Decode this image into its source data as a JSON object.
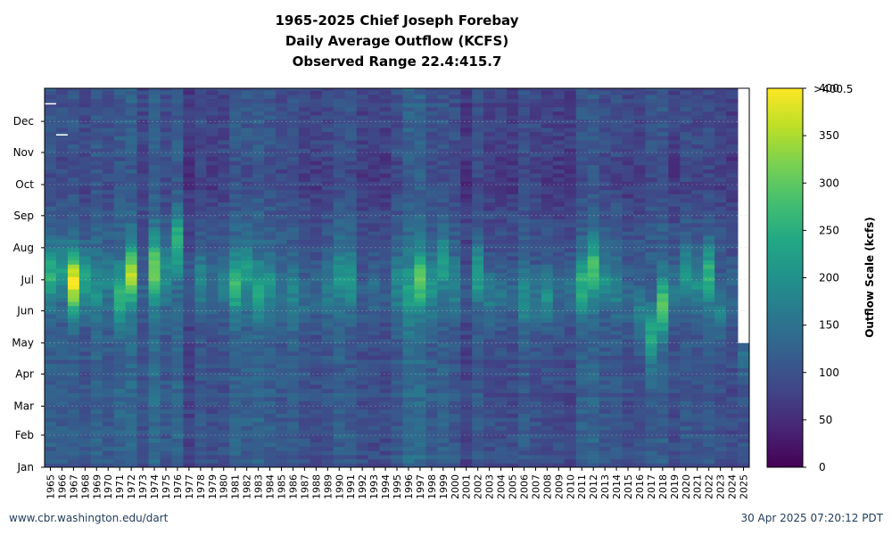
{
  "title": {
    "line1": "1965-2025 Chief Joseph Forebay",
    "line2": "Daily Average Outflow (KCFS)",
    "line3": "Observed Range 22.4:415.7"
  },
  "footer": {
    "left": "www.cbr.washington.edu/dart",
    "right": "30 Apr 2025 07:20:12 PDT"
  },
  "chart_data": {
    "type": "heatmap",
    "title": "1965-2025 Chief Joseph Forebay Daily Average Outflow (KCFS) Observed Range 22.4:415.7",
    "x": {
      "label": "",
      "years": [
        1965,
        1966,
        1967,
        1968,
        1969,
        1970,
        1971,
        1972,
        1973,
        1974,
        1975,
        1976,
        1977,
        1978,
        1979,
        1980,
        1981,
        1982,
        1983,
        1984,
        1985,
        1986,
        1987,
        1988,
        1989,
        1990,
        1991,
        1992,
        1993,
        1994,
        1995,
        1996,
        1997,
        1998,
        1999,
        2000,
        2001,
        2002,
        2003,
        2004,
        2005,
        2006,
        2007,
        2008,
        2009,
        2010,
        2011,
        2012,
        2013,
        2014,
        2015,
        2016,
        2017,
        2018,
        2019,
        2020,
        2021,
        2022,
        2023,
        2024,
        2025
      ],
      "tick_labels": [
        "1965",
        "1966",
        "1967",
        "1968",
        "1969",
        "1970",
        "1971",
        "1972",
        "1973",
        "1974",
        "1975",
        "1976",
        "1977",
        "1978",
        "1979",
        "1980",
        "1981",
        "1982",
        "1983",
        "1984",
        "1985",
        "1986",
        "1987",
        "1988",
        "1989",
        "1990",
        "1991",
        "1992",
        "1993",
        "1994",
        "1995",
        "1996",
        "1997",
        "1998",
        "1999",
        "2000",
        "2001",
        "2002",
        "2003",
        "2004",
        "2005",
        "2006",
        "2007",
        "2008",
        "2009",
        "2010",
        "2011",
        "2012",
        "2013",
        "2014",
        "2015",
        "2016",
        "2017",
        "2018",
        "2019",
        "2020",
        "2021",
        "2022",
        "2023",
        "2024",
        "2025"
      ]
    },
    "y": {
      "label": "",
      "months": [
        "Jan",
        "Feb",
        "Mar",
        "Apr",
        "May",
        "Jun",
        "Jul",
        "Aug",
        "Sep",
        "Oct",
        "Nov",
        "Dec"
      ],
      "range_days": [
        1,
        366
      ]
    },
    "colorbar": {
      "label": "Outflow Scale (kcfs)",
      "colormap": "viridis",
      "range": [
        0,
        400
      ],
      "ticks": [
        0,
        50,
        100,
        150,
        200,
        250,
        300,
        350,
        400
      ],
      "tick_labels": [
        "0",
        "50",
        "100",
        "150",
        "200",
        "250",
        "300",
        "350",
        "400"
      ],
      "over_label": ">400.5"
    },
    "data_end": {
      "year": 2025,
      "last_day_of_year": 120
    },
    "missing_marks": [
      {
        "year": 1965,
        "day_of_year": 352
      },
      {
        "year": 1966,
        "day_of_year": 322
      }
    ],
    "daily_model": {
      "note": "Typical daily outflow by year (kcfs): base winter value, spring/summer peak value and peak day-of-year",
      "years": [
        {
          "year": 1965,
          "winter": 120,
          "peak": 250,
          "peak_day": 185
        },
        {
          "year": 1966,
          "winter": 115,
          "peak": 215,
          "peak_day": 190
        },
        {
          "year": 1967,
          "winter": 120,
          "peak": 390,
          "peak_day": 178
        },
        {
          "year": 1968,
          "winter": 105,
          "peak": 230,
          "peak_day": 180
        },
        {
          "year": 1969,
          "winter": 125,
          "peak": 200,
          "peak_day": 170
        },
        {
          "year": 1970,
          "winter": 115,
          "peak": 175,
          "peak_day": 180
        },
        {
          "year": 1971,
          "winter": 130,
          "peak": 260,
          "peak_day": 165
        },
        {
          "year": 1972,
          "winter": 135,
          "peak": 350,
          "peak_day": 185
        },
        {
          "year": 1973,
          "winter": 100,
          "peak": 130,
          "peak_day": 170
        },
        {
          "year": 1974,
          "winter": 140,
          "peak": 320,
          "peak_day": 190
        },
        {
          "year": 1975,
          "winter": 110,
          "peak": 200,
          "peak_day": 185
        },
        {
          "year": 1976,
          "winter": 130,
          "peak": 260,
          "peak_day": 215
        },
        {
          "year": 1977,
          "winter": 80,
          "peak": 110,
          "peak_day": 180
        },
        {
          "year": 1978,
          "winter": 105,
          "peak": 180,
          "peak_day": 180
        },
        {
          "year": 1979,
          "winter": 95,
          "peak": 150,
          "peak_day": 175
        },
        {
          "year": 1980,
          "winter": 100,
          "peak": 170,
          "peak_day": 175
        },
        {
          "year": 1981,
          "winter": 125,
          "peak": 270,
          "peak_day": 175
        },
        {
          "year": 1982,
          "winter": 120,
          "peak": 220,
          "peak_day": 185
        },
        {
          "year": 1983,
          "winter": 130,
          "peak": 230,
          "peak_day": 170
        },
        {
          "year": 1984,
          "winter": 120,
          "peak": 200,
          "peak_day": 175
        },
        {
          "year": 1985,
          "winter": 110,
          "peak": 160,
          "peak_day": 170
        },
        {
          "year": 1986,
          "winter": 115,
          "peak": 180,
          "peak_day": 165
        },
        {
          "year": 1987,
          "winter": 100,
          "peak": 140,
          "peak_day": 160
        },
        {
          "year": 1988,
          "winter": 95,
          "peak": 130,
          "peak_day": 170
        },
        {
          "year": 1989,
          "winter": 105,
          "peak": 160,
          "peak_day": 170
        },
        {
          "year": 1990,
          "winter": 120,
          "peak": 200,
          "peak_day": 185
        },
        {
          "year": 1991,
          "winter": 115,
          "peak": 220,
          "peak_day": 180
        },
        {
          "year": 1992,
          "winter": 95,
          "peak": 120,
          "peak_day": 160
        },
        {
          "year": 1993,
          "winter": 90,
          "peak": 140,
          "peak_day": 170
        },
        {
          "year": 1994,
          "winter": 90,
          "peak": 120,
          "peak_day": 170
        },
        {
          "year": 1995,
          "winter": 110,
          "peak": 180,
          "peak_day": 175
        },
        {
          "year": 1996,
          "winter": 140,
          "peak": 230,
          "peak_day": 170
        },
        {
          "year": 1997,
          "winter": 140,
          "peak": 300,
          "peak_day": 180
        },
        {
          "year": 1998,
          "winter": 115,
          "peak": 210,
          "peak_day": 175
        },
        {
          "year": 1999,
          "winter": 120,
          "peak": 220,
          "peak_day": 195
        },
        {
          "year": 2000,
          "winter": 110,
          "peak": 180,
          "peak_day": 175
        },
        {
          "year": 2001,
          "winter": 80,
          "peak": 110,
          "peak_day": 170
        },
        {
          "year": 2002,
          "winter": 110,
          "peak": 230,
          "peak_day": 185
        },
        {
          "year": 2003,
          "winter": 95,
          "peak": 170,
          "peak_day": 165
        },
        {
          "year": 2004,
          "winter": 95,
          "peak": 150,
          "peak_day": 165
        },
        {
          "year": 2005,
          "winter": 90,
          "peak": 130,
          "peak_day": 165
        },
        {
          "year": 2006,
          "winter": 110,
          "peak": 200,
          "peak_day": 165
        },
        {
          "year": 2007,
          "winter": 100,
          "peak": 160,
          "peak_day": 160
        },
        {
          "year": 2008,
          "winter": 95,
          "peak": 200,
          "peak_day": 165
        },
        {
          "year": 2009,
          "winter": 90,
          "peak": 140,
          "peak_day": 165
        },
        {
          "year": 2010,
          "winter": 85,
          "peak": 150,
          "peak_day": 175
        },
        {
          "year": 2011,
          "winter": 120,
          "peak": 250,
          "peak_day": 175
        },
        {
          "year": 2012,
          "winter": 130,
          "peak": 280,
          "peak_day": 190
        },
        {
          "year": 2013,
          "winter": 110,
          "peak": 190,
          "peak_day": 180
        },
        {
          "year": 2014,
          "winter": 110,
          "peak": 180,
          "peak_day": 175
        },
        {
          "year": 2015,
          "winter": 95,
          "peak": 140,
          "peak_day": 160
        },
        {
          "year": 2016,
          "winter": 100,
          "peak": 170,
          "peak_day": 150
        },
        {
          "year": 2017,
          "winter": 115,
          "peak": 240,
          "peak_day": 125
        },
        {
          "year": 2018,
          "winter": 120,
          "peak": 290,
          "peak_day": 155
        },
        {
          "year": 2019,
          "winter": 95,
          "peak": 160,
          "peak_day": 170
        },
        {
          "year": 2020,
          "winter": 110,
          "peak": 210,
          "peak_day": 185
        },
        {
          "year": 2021,
          "winter": 105,
          "peak": 190,
          "peak_day": 175
        },
        {
          "year": 2022,
          "winter": 110,
          "peak": 260,
          "peak_day": 185
        },
        {
          "year": 2023,
          "winter": 100,
          "peak": 170,
          "peak_day": 150
        },
        {
          "year": 2024,
          "winter": 90,
          "peak": 130,
          "peak_day": 170
        },
        {
          "year": 2025,
          "winter": 100,
          "peak": 140,
          "peak_day": 110
        }
      ]
    }
  }
}
